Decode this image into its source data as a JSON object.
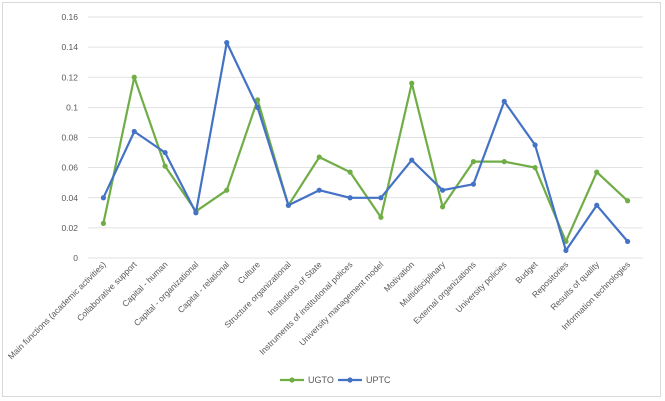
{
  "chart_data": {
    "type": "line",
    "title": "",
    "xlabel": "",
    "ylabel": "",
    "ylim": [
      0,
      0.16
    ],
    "yticks": [
      "0",
      "0.02",
      "0.04",
      "0.06",
      "0.08",
      "0.1",
      "0.12",
      "0.14",
      "0.16"
    ],
    "grid": true,
    "legend_position": "bottom",
    "categories": [
      "Main functions (academic activities)",
      "Collaborative support",
      "Capital - human",
      "Capital - organizational",
      "Capital - relational",
      "Culture",
      "Structure organizational",
      "Institutions of State",
      "Instruments of institutional polices",
      "University management model",
      "Motivation",
      "Multidisciplinary",
      "External organizations",
      "University policies",
      "Budget",
      "Repositories",
      "Results of quality",
      "Information technologies"
    ],
    "series": [
      {
        "name": "UGTO",
        "color": "#70ad47",
        "values": [
          0.023,
          0.12,
          0.061,
          0.031,
          0.045,
          0.105,
          0.035,
          0.067,
          0.057,
          0.027,
          0.116,
          0.034,
          0.064,
          0.064,
          0.06,
          0.011,
          0.057,
          0.038
        ]
      },
      {
        "name": "UPTC",
        "color": "#4472c4",
        "values": [
          0.04,
          0.084,
          0.07,
          0.03,
          0.143,
          0.1,
          0.035,
          0.045,
          0.04,
          0.04,
          0.065,
          0.045,
          0.049,
          0.104,
          0.075,
          0.005,
          0.035,
          0.011
        ]
      }
    ]
  }
}
